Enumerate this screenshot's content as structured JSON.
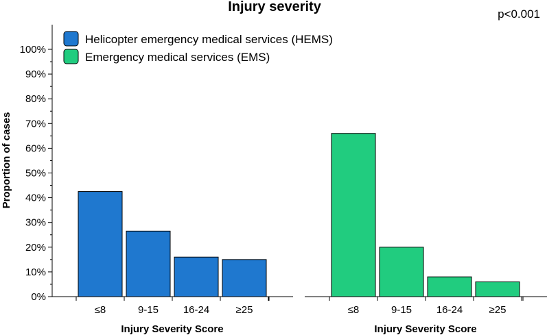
{
  "chart_data": {
    "type": "bar",
    "title": "Injury severity",
    "annotation": "p<0.001",
    "ylabel": "Proportion of cases",
    "ylim": [
      0,
      100
    ],
    "yticks": [
      "0%",
      "10%",
      "20%",
      "30%",
      "40%",
      "50%",
      "60%",
      "70%",
      "80%",
      "90%",
      "100%"
    ],
    "legend": {
      "placement": "top-left",
      "entries": [
        {
          "name": "Helicopter emergency medical services (HEMS)",
          "color": "#1f78cf"
        },
        {
          "name": "Emergency medical services (EMS)",
          "color": "#21cc7f"
        }
      ]
    },
    "panels": [
      {
        "name": "HEMS",
        "xlabel": "Injury Severity Score",
        "color": "#1f78cf",
        "categories": [
          "≤8",
          "9-15",
          "16-24",
          "≥25"
        ],
        "values": [
          42.5,
          26.5,
          16,
          15
        ]
      },
      {
        "name": "EMS",
        "xlabel": "Injury Severity Score",
        "color": "#21cc7f",
        "categories": [
          "≤8",
          "9-15",
          "16-24",
          "≥25"
        ],
        "values": [
          66,
          20,
          8,
          6
        ]
      }
    ]
  }
}
